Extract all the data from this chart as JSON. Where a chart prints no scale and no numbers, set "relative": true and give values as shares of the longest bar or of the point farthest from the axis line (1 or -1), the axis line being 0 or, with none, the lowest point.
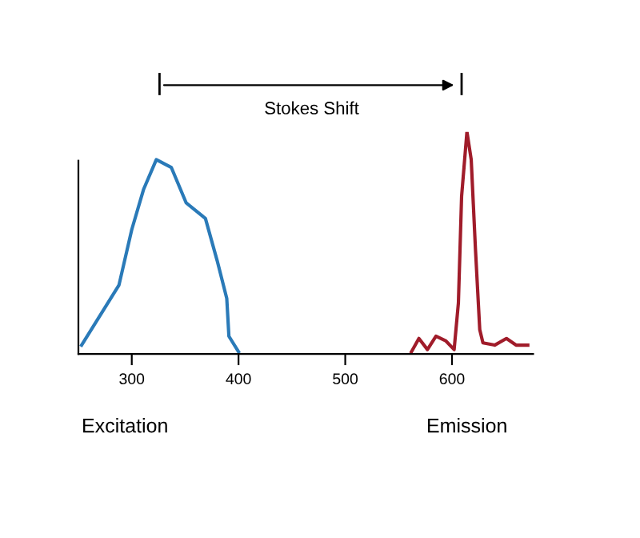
{
  "chart_data": {
    "type": "line",
    "relative": true,
    "xlim": [
      250,
      676
    ],
    "xticks": [
      300,
      400,
      500,
      600
    ],
    "grid": false,
    "marker": "none",
    "line_style": "solid",
    "annotations": [
      "Stokes Shift",
      "Excitation",
      "Emission"
    ],
    "series": [
      {
        "color": "#2a7ab8",
        "x": [
          253,
          288,
          300,
          311,
          323,
          337,
          351,
          369,
          380,
          389,
          391,
          400
        ],
        "values": [
          0.04,
          0.31,
          0.56,
          0.74,
          0.875,
          0.84,
          0.68,
          0.61,
          0.42,
          0.25,
          0.08,
          0.01
        ]
      },
      {
        "color": "#a01c2a",
        "x": [
          562,
          569,
          577,
          585,
          594,
          602,
          606,
          609,
          614,
          618,
          622,
          626,
          629,
          640,
          651,
          660,
          671
        ],
        "values": [
          0.01,
          0.07,
          0.02,
          0.08,
          0.06,
          0.02,
          0.23,
          0.71,
          1,
          0.875,
          0.47,
          0.11,
          0.05,
          0.04,
          0.07,
          0.04,
          0.04
        ]
      }
    ]
  }
}
